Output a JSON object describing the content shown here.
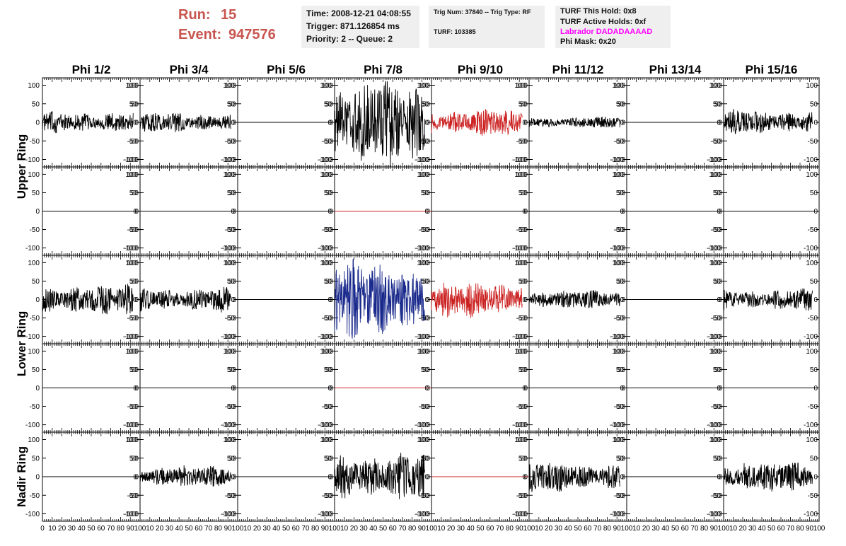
{
  "header": {
    "run_label": "Run:",
    "run_value": "15",
    "event_label": "Event:",
    "event_value": "947576",
    "time_text": "Time: 2008-12-21 04:08:55",
    "trigger_text": "Trigger: 871.126854 ms",
    "priority_text": "Priority: 2 -- Queue: 2",
    "trig_text": "Trig Num: 37840 -- Trig Type: RF",
    "turf_text": "TURF: 103385",
    "turf_hold_text": "TURF This Hold: 0x8",
    "turf_active_text": "TURF Active Holds: 0xf",
    "labrador_text": "Labrador DADADAAAAD",
    "phi_mask_text": "Phi Mask: 0x20"
  },
  "colors": {
    "run_text": "#c8554f",
    "labrador_text": "#ff00ff",
    "trace_black": "#000000",
    "trace_red": "#cc2222",
    "trace_blue": "#1a2a8c",
    "box_bg": "#efefef"
  },
  "chart_data": {
    "type": "line",
    "columns": [
      "Phi 1/2",
      "Phi 3/4",
      "Phi 5/6",
      "Phi 7/8",
      "Phi 9/10",
      "Phi 11/12",
      "Phi 13/14",
      "Phi 15/16"
    ],
    "ring_labels": [
      {
        "label": "Upper Ring",
        "rows": [
          0,
          1
        ]
      },
      {
        "label": "Lower Ring",
        "rows": [
          2,
          3
        ]
      },
      {
        "label": "Nadir Ring",
        "rows": [
          4
        ]
      }
    ],
    "xlim": [
      0,
      100
    ],
    "ylim": [
      -120,
      120
    ],
    "x_ticks": [
      "0",
      "10",
      "20",
      "30",
      "40",
      "50",
      "60",
      "70",
      "80",
      "90",
      "100"
    ],
    "y_ticks": [
      "100",
      "50",
      "0",
      "-50",
      "-100"
    ],
    "y_tick_values": [
      100,
      50,
      0,
      -50,
      -100
    ],
    "grid": false,
    "amplitude_scale": [
      [
        18,
        16,
        0,
        70,
        22,
        10,
        0,
        20
      ],
      [
        0,
        0,
        0,
        0,
        0,
        0,
        0,
        0
      ],
      [
        25,
        20,
        0,
        65,
        30,
        15,
        0,
        18
      ],
      [
        0,
        0,
        0,
        0,
        0,
        0,
        0,
        0
      ],
      [
        0,
        18,
        0,
        40,
        0,
        25,
        0,
        25
      ]
    ],
    "trace_colors": [
      [
        "black",
        "black",
        "black",
        "black",
        "red",
        "black",
        "black",
        "black"
      ],
      [
        "black",
        "black",
        "black",
        "red",
        "black",
        "black",
        "black",
        "black"
      ],
      [
        "black",
        "black",
        "black",
        "blue",
        "red",
        "black",
        "black",
        "black"
      ],
      [
        "black",
        "black",
        "black",
        "red",
        "black",
        "black",
        "black",
        "black"
      ],
      [
        "black",
        "black",
        "black",
        "black",
        "red",
        "black",
        "black",
        "black"
      ]
    ]
  }
}
